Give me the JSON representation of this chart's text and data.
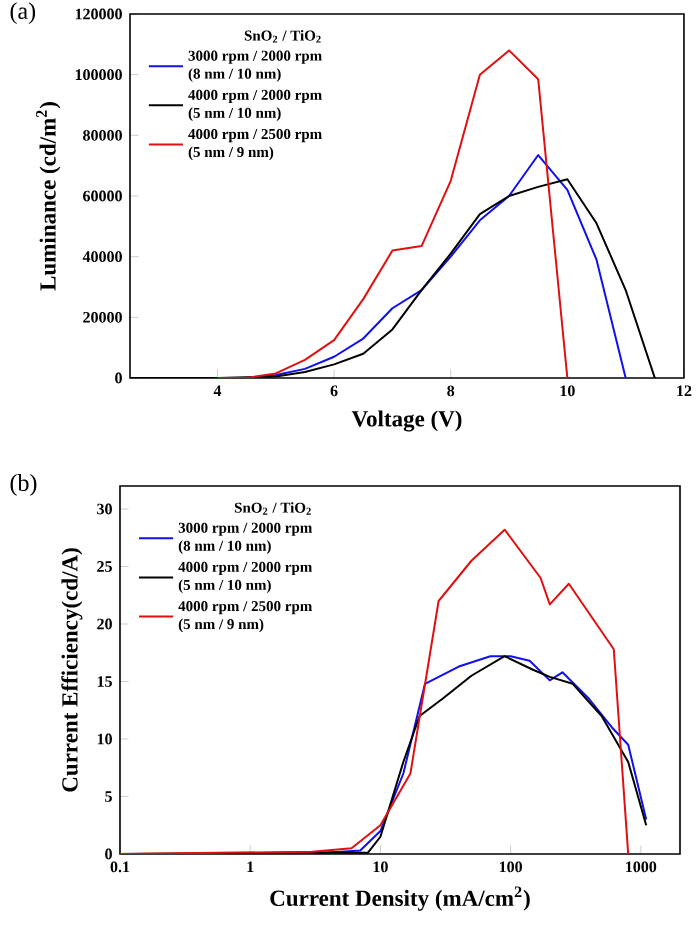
{
  "chart_data": [
    {
      "type": "line",
      "title": "(a)",
      "xlabel": "Voltage (V)",
      "ylabel": "Luminance (cd/m$^{2}$)",
      "legend_title": "SnO$_{2}$ / TiO$_{2}$",
      "legend": "top left",
      "xlim": [
        2.5,
        12
      ],
      "xticks": [
        4,
        6,
        8,
        10,
        12
      ],
      "ylim": [
        0,
        120000
      ],
      "yticks": [
        0,
        20000,
        40000,
        60000,
        80000,
        100000,
        120000
      ],
      "series": [
        {
          "name": "3000 rpm / 2000 rpm (8 nm / 10 nm)",
          "color": "#1010ee",
          "x": [
            4.5,
            5,
            5.5,
            6,
            6.5,
            7,
            7.5,
            8,
            8.5,
            9,
            9.5,
            10,
            10.5,
            11
          ],
          "values": [
            0,
            1000,
            3000,
            7000,
            13000,
            23000,
            29000,
            40000,
            52000,
            60000,
            73500,
            62000,
            39000,
            0
          ]
        },
        {
          "name": "4000 rpm / 2000 rpm (5 nm / 10 nm)",
          "color": "#000000",
          "x": [
            2.5,
            4,
            5,
            5.5,
            6,
            6.5,
            7,
            7.5,
            8,
            8.5,
            9,
            9.5,
            10,
            10.5,
            11,
            11.5
          ],
          "values": [
            0,
            0,
            500,
            2000,
            4500,
            8000,
            16000,
            29000,
            41000,
            54000,
            60000,
            63000,
            65500,
            51000,
            29000,
            0
          ]
        },
        {
          "name": "4000 rpm / 2500 rpm (5 nm / 9 nm)",
          "color": "#e01010",
          "x": [
            4,
            4.5,
            5,
            5.5,
            6,
            6.5,
            7,
            7.5,
            8,
            8.5,
            9,
            9.5,
            10
          ],
          "values": [
            0,
            0,
            1500,
            6000,
            12500,
            26000,
            42000,
            43500,
            65000,
            100000,
            108000,
            98500,
            0
          ]
        }
      ]
    },
    {
      "type": "line",
      "title": "(b)",
      "xlabel": "Current Density (mA/cm$^{2}$)",
      "ylabel": "Current Efficiency(cd/A)",
      "legend_title": "SnO$_{2}$ / TiO$_{2}$",
      "legend": "top left",
      "log": "x",
      "xlim": [
        0.1,
        2000
      ],
      "xticks": [
        0.1,
        1,
        10,
        100,
        1000
      ],
      "ylim": [
        0,
        32
      ],
      "yticks": [
        0,
        5,
        10,
        15,
        20,
        25,
        30
      ],
      "series": [
        {
          "name": "3000 rpm / 2000 rpm (8 nm / 10 nm)",
          "color": "#1010ee",
          "x": [
            0.1,
            2,
            5,
            7,
            10,
            15,
            22,
            40,
            70,
            100,
            140,
            200,
            250,
            400,
            600,
            800,
            1100
          ],
          "values": [
            0,
            0,
            0.2,
            0.3,
            2,
            7,
            14.8,
            16.3,
            17.2,
            17.2,
            16.8,
            15.1,
            15.8,
            13.5,
            11,
            9.5,
            3
          ]
        },
        {
          "name": "4000 rpm / 2000 rpm (5 nm / 10 nm)",
          "color": "#000000",
          "x": [
            0.1,
            2,
            8,
            10,
            15,
            20,
            30,
            50,
            90,
            150,
            200,
            300,
            500,
            800,
            1100
          ],
          "values": [
            0,
            0.1,
            0.1,
            1.5,
            8,
            12,
            13.5,
            15.5,
            17.2,
            16,
            15.4,
            14.8,
            12,
            8,
            2.5
          ]
        },
        {
          "name": "4000 rpm / 2500 rpm (5 nm / 9 nm)",
          "color": "#e01010",
          "x": [
            0.1,
            3,
            6,
            10,
            17,
            28,
            50,
            90,
            170,
            200,
            280,
            620,
            800
          ],
          "values": [
            0,
            0.2,
            0.5,
            2.5,
            7,
            22,
            25.5,
            28.2,
            24,
            21.7,
            23.5,
            17.8,
            0
          ]
        }
      ]
    }
  ]
}
